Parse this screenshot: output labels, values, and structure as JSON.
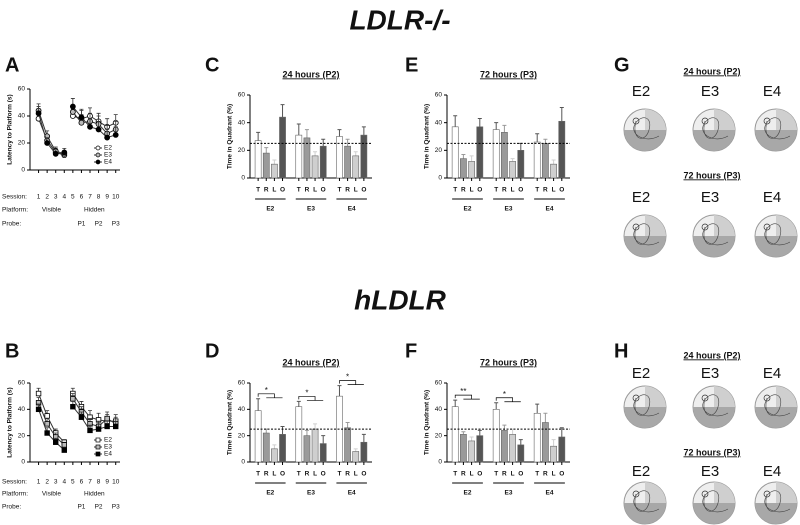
{
  "sections": [
    "LDLR-/-",
    "hLDLR"
  ],
  "chart_data": [
    {
      "type": "line",
      "panel": "A",
      "ylabel": "Latency to Platform (s)",
      "x": [
        1,
        2,
        3,
        4,
        5,
        6,
        7,
        8,
        9,
        10
      ],
      "xlim": [
        0,
        10.5
      ],
      "xticks": [
        1,
        2,
        3,
        4,
        5,
        6,
        7,
        8,
        9,
        10
      ],
      "ylim": [
        0,
        60
      ],
      "yticks": [
        0,
        20,
        40,
        60
      ],
      "marker": "circle",
      "legend": "lower right",
      "row_labels": [
        "Session:",
        "Platform:",
        "Probe:"
      ],
      "phases": [
        {
          "label": "Visible",
          "start": 1,
          "end": 4
        },
        {
          "label": "Hidden",
          "start": 5,
          "end": 10
        }
      ],
      "probes": [
        {
          "label": "P1",
          "x": 6
        },
        {
          "label": "P2",
          "x": 8
        },
        {
          "label": "P3",
          "x": 10
        }
      ],
      "series": [
        {
          "name": "E2",
          "color": "#ffffff",
          "values": [
            38,
            22,
            13,
            11,
            40,
            38,
            40,
            36,
            32,
            35
          ],
          "errors": [
            5,
            4,
            3,
            2,
            5,
            6,
            6,
            6,
            6,
            6
          ]
        },
        {
          "name": "E3",
          "color": "#bbbbbb",
          "values": [
            44,
            25,
            14,
            12,
            43,
            35,
            36,
            34,
            27,
            30
          ],
          "errors": [
            5,
            4,
            3,
            2,
            5,
            6,
            6,
            6,
            6,
            6
          ]
        },
        {
          "name": "E4",
          "color": "#000000",
          "values": [
            42,
            20,
            12,
            13,
            47,
            39,
            32,
            30,
            24,
            26
          ],
          "errors": [
            5,
            4,
            3,
            3,
            6,
            6,
            6,
            6,
            6,
            6
          ]
        }
      ]
    },
    {
      "type": "bar",
      "panel": "C",
      "title": "24 hours (P2)",
      "ylabel": "Time in Quadrant (%)",
      "categories": [
        "T",
        "R",
        "L",
        "O"
      ],
      "bar_colors": [
        "#ffffff",
        "#9a9a9a",
        "#cfcfcf",
        "#555555"
      ],
      "ylim": [
        0,
        60
      ],
      "yticks": [
        0,
        20,
        40,
        60
      ],
      "reference_line": 25,
      "series": [
        {
          "name": "E2",
          "values": [
            27,
            18,
            10,
            44
          ],
          "errors": [
            6,
            4,
            3,
            9
          ]
        },
        {
          "name": "E3",
          "values": [
            31,
            29,
            16,
            23
          ],
          "errors": [
            8,
            6,
            3,
            5
          ]
        },
        {
          "name": "E4",
          "values": [
            30,
            23,
            16,
            31
          ],
          "errors": [
            5,
            5,
            3,
            6
          ]
        }
      ],
      "significance": []
    },
    {
      "type": "bar",
      "panel": "E",
      "title": "72 hours (P3)",
      "ylabel": "Time in Quadrant (%)",
      "categories": [
        "T",
        "R",
        "L",
        "O"
      ],
      "bar_colors": [
        "#ffffff",
        "#9a9a9a",
        "#cfcfcf",
        "#555555"
      ],
      "ylim": [
        0,
        60
      ],
      "yticks": [
        0,
        20,
        40,
        60
      ],
      "reference_line": 25,
      "series": [
        {
          "name": "E2",
          "values": [
            37,
            14,
            12,
            37
          ],
          "errors": [
            8,
            3,
            4,
            6
          ]
        },
        {
          "name": "E3",
          "values": [
            35,
            33,
            12,
            20
          ],
          "errors": [
            5,
            5,
            2,
            5
          ]
        },
        {
          "name": "E4",
          "values": [
            26,
            25,
            10,
            41
          ],
          "errors": [
            6,
            3,
            3,
            10
          ]
        }
      ],
      "significance": []
    },
    {
      "type": "line",
      "panel": "B",
      "ylabel": "Latency to Platform (s)",
      "x": [
        1,
        2,
        3,
        4,
        5,
        6,
        7,
        8,
        9,
        10
      ],
      "xlim": [
        0,
        10.5
      ],
      "xticks": [
        1,
        2,
        3,
        4,
        5,
        6,
        7,
        8,
        9,
        10
      ],
      "ylim": [
        0,
        60
      ],
      "yticks": [
        0,
        20,
        40,
        60
      ],
      "marker": "square",
      "legend": "lower right",
      "row_labels": [
        "Session:",
        "Platform:",
        "Probe:"
      ],
      "phases": [
        {
          "label": "Visible",
          "start": 1,
          "end": 4
        },
        {
          "label": "Hidden",
          "start": 5,
          "end": 10
        }
      ],
      "probes": [
        {
          "label": "P1",
          "x": 6
        },
        {
          "label": "P2",
          "x": 8
        },
        {
          "label": "P3",
          "x": 10
        }
      ],
      "series": [
        {
          "name": "E2",
          "color": "#ffffff",
          "values": [
            52,
            35,
            22,
            15,
            52,
            42,
            34,
            32,
            31,
            31
          ],
          "errors": [
            4,
            4,
            3,
            2,
            4,
            4,
            5,
            5,
            5,
            5
          ]
        },
        {
          "name": "E3",
          "color": "#bbbbbb",
          "values": [
            45,
            29,
            19,
            13,
            48,
            38,
            29,
            27,
            33,
            29
          ],
          "errors": [
            4,
            4,
            3,
            2,
            4,
            4,
            4,
            4,
            5,
            5
          ]
        },
        {
          "name": "E4",
          "color": "#000000",
          "values": [
            40,
            22,
            15,
            9,
            42,
            34,
            24,
            25,
            27,
            27
          ],
          "errors": [
            4,
            4,
            3,
            2,
            4,
            4,
            4,
            4,
            4,
            4
          ]
        }
      ]
    },
    {
      "type": "bar",
      "panel": "D",
      "title": "24 hours (P2)",
      "ylabel": "Time in Quadrant (%)",
      "categories": [
        "T",
        "R",
        "L",
        "O"
      ],
      "bar_colors": [
        "#ffffff",
        "#9a9a9a",
        "#cfcfcf",
        "#555555"
      ],
      "ylim": [
        0,
        60
      ],
      "yticks": [
        0,
        20,
        40,
        60
      ],
      "reference_line": 25,
      "series": [
        {
          "name": "E2",
          "values": [
            39,
            22,
            10,
            21
          ],
          "errors": [
            9,
            3,
            3,
            6
          ]
        },
        {
          "name": "E3",
          "values": [
            42,
            20,
            25,
            14
          ],
          "errors": [
            4,
            4,
            4,
            6
          ]
        },
        {
          "name": "E4",
          "values": [
            50,
            26,
            8,
            15
          ],
          "errors": [
            8,
            4,
            2,
            6
          ]
        }
      ],
      "significance": [
        {
          "label": "*",
          "series": 0
        },
        {
          "label": "*",
          "series": 1
        },
        {
          "label": "*",
          "series": 2
        }
      ]
    },
    {
      "type": "bar",
      "panel": "F",
      "title": "72 hours (P3)",
      "ylabel": "Time in Quadrant (%)",
      "categories": [
        "T",
        "R",
        "L",
        "O"
      ],
      "bar_colors": [
        "#ffffff",
        "#9a9a9a",
        "#cfcfcf",
        "#555555"
      ],
      "ylim": [
        0,
        60
      ],
      "yticks": [
        0,
        20,
        40,
        60
      ],
      "reference_line": 25,
      "series": [
        {
          "name": "E2",
          "values": [
            42,
            21,
            16,
            20
          ],
          "errors": [
            5,
            2,
            3,
            4
          ]
        },
        {
          "name": "E3",
          "values": [
            40,
            24,
            21,
            13
          ],
          "errors": [
            5,
            4,
            4,
            4
          ]
        },
        {
          "name": "E4",
          "values": [
            37,
            30,
            12,
            19
          ],
          "errors": [
            7,
            7,
            5,
            7
          ]
        }
      ],
      "significance": [
        {
          "label": "**",
          "series": 0
        },
        {
          "label": "*",
          "series": 1
        }
      ]
    }
  ],
  "track_panels": [
    {
      "panel": "G",
      "rows": [
        {
          "title": "24 hours (P2)",
          "labels": [
            "E2",
            "E3",
            "E4"
          ]
        },
        {
          "title": "72 hours (P3)",
          "labels": [
            "E2",
            "E3",
            "E4"
          ]
        }
      ]
    },
    {
      "panel": "H",
      "rows": [
        {
          "title": "24 hours (P2)",
          "labels": [
            "E2",
            "E3",
            "E4"
          ]
        },
        {
          "title": "72 hours (P3)",
          "labels": [
            "E2",
            "E3",
            "E4"
          ]
        }
      ]
    }
  ]
}
